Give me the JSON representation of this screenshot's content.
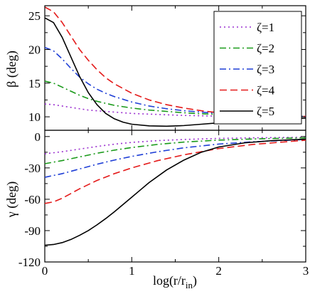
{
  "chart_data": [
    {
      "type": "line",
      "id": "top",
      "xlabel": "",
      "ylabel": "β (deg)",
      "xlim": [
        0,
        3
      ],
      "ylim": [
        8,
        26.5
      ],
      "xticks": [
        0,
        1,
        2,
        3
      ],
      "yticks": [
        10,
        15,
        20,
        25
      ],
      "ytick_labels": [
        "10",
        "15",
        "20",
        "25"
      ],
      "legend_position": "top-right",
      "series": [
        {
          "name": "ζ=1",
          "color": "#9b30d0",
          "dash": "dot",
          "x": [
            0,
            0.1,
            0.2,
            0.3,
            0.4,
            0.5,
            0.6,
            0.7,
            0.8,
            1.0,
            1.2,
            1.4,
            1.6,
            1.8,
            2.0,
            2.3,
            2.6,
            3.0
          ],
          "y": [
            11.9,
            11.8,
            11.6,
            11.4,
            11.2,
            11.0,
            10.9,
            10.8,
            10.7,
            10.5,
            10.4,
            10.3,
            10.2,
            10.15,
            10.1,
            10.05,
            10.0,
            10.0
          ]
        },
        {
          "name": "ζ=2",
          "color": "#1a9a1a",
          "dash": "dashdot",
          "x": [
            0,
            0.1,
            0.2,
            0.3,
            0.4,
            0.5,
            0.6,
            0.7,
            0.8,
            1.0,
            1.2,
            1.4,
            1.6,
            1.8,
            2.0,
            2.3,
            2.6,
            3.0
          ],
          "y": [
            15.3,
            15.0,
            14.4,
            13.8,
            13.2,
            12.7,
            12.3,
            12.0,
            11.7,
            11.3,
            11.0,
            10.8,
            10.6,
            10.45,
            10.35,
            10.2,
            10.1,
            10.05
          ]
        },
        {
          "name": "ζ=3",
          "color": "#1f3fd6",
          "dash": "dashdot",
          "x": [
            0,
            0.1,
            0.2,
            0.3,
            0.4,
            0.5,
            0.6,
            0.7,
            0.8,
            1.0,
            1.2,
            1.4,
            1.6,
            1.8,
            2.0,
            2.3,
            2.6,
            3.0
          ],
          "y": [
            20.3,
            19.8,
            18.6,
            17.2,
            15.9,
            14.9,
            14.1,
            13.5,
            13.0,
            12.2,
            11.6,
            11.2,
            10.9,
            10.7,
            10.5,
            10.3,
            10.15,
            10.05
          ]
        },
        {
          "name": "ζ=4",
          "color": "#e41a1a",
          "dash": "dash",
          "x": [
            0,
            0.1,
            0.2,
            0.3,
            0.4,
            0.5,
            0.6,
            0.7,
            0.8,
            1.0,
            1.2,
            1.4,
            1.6,
            1.8,
            2.0,
            2.3,
            2.6,
            3.0
          ],
          "y": [
            26.3,
            25.6,
            24.0,
            22.0,
            20.0,
            18.4,
            17.0,
            15.8,
            14.9,
            13.5,
            12.5,
            11.8,
            11.3,
            10.9,
            10.6,
            10.3,
            10.15,
            10.05
          ]
        },
        {
          "name": "ζ=5",
          "color": "#000000",
          "dash": "solid",
          "x": [
            0,
            0.1,
            0.2,
            0.3,
            0.4,
            0.5,
            0.6,
            0.7,
            0.8,
            0.9,
            1.0,
            1.2,
            1.4,
            1.6,
            1.8,
            2.0,
            2.3,
            2.6,
            3.0
          ],
          "y": [
            24.7,
            24.0,
            21.8,
            18.9,
            16.0,
            13.6,
            11.8,
            10.5,
            9.7,
            9.2,
            8.9,
            8.65,
            8.6,
            8.7,
            8.9,
            9.1,
            9.4,
            9.6,
            9.8
          ]
        }
      ]
    },
    {
      "type": "line",
      "id": "bottom",
      "xlabel": "log(r/r_in)",
      "ylabel": "γ (deg)",
      "xlim": [
        0,
        3
      ],
      "ylim": [
        -120,
        6
      ],
      "xticks": [
        0,
        1,
        2,
        3
      ],
      "xtick_labels": [
        "0",
        "1",
        "2",
        "3"
      ],
      "yticks": [
        -120,
        -90,
        -60,
        -30,
        0
      ],
      "ytick_labels": [
        "-120",
        "-90",
        "-60",
        "-30",
        "0"
      ],
      "series": [
        {
          "name": "ζ=1",
          "color": "#9b30d0",
          "dash": "dot",
          "x": [
            0,
            0.2,
            0.4,
            0.6,
            0.8,
            1.0,
            1.3,
            1.6,
            2.0,
            2.4,
            3.0
          ],
          "y": [
            -16.5,
            -14.5,
            -12.0,
            -9.5,
            -7.3,
            -5.6,
            -3.9,
            -2.8,
            -1.8,
            -1.2,
            -0.7
          ]
        },
        {
          "name": "ζ=2",
          "color": "#1a9a1a",
          "dash": "dashdot",
          "x": [
            0,
            0.2,
            0.4,
            0.6,
            0.8,
            1.0,
            1.3,
            1.6,
            2.0,
            2.4,
            3.0
          ],
          "y": [
            -26,
            -23,
            -19.5,
            -16,
            -13,
            -10.5,
            -7.5,
            -5.3,
            -3.4,
            -2.3,
            -1.2
          ]
        },
        {
          "name": "ζ=3",
          "color": "#1f3fd6",
          "dash": "dashdot",
          "x": [
            0,
            0.2,
            0.4,
            0.6,
            0.8,
            1.0,
            1.3,
            1.6,
            2.0,
            2.4,
            3.0
          ],
          "y": [
            -39,
            -35.5,
            -31,
            -26.5,
            -22.5,
            -19,
            -14.5,
            -10.8,
            -7.2,
            -5.0,
            -2.8
          ]
        },
        {
          "name": "ζ=4",
          "color": "#e41a1a",
          "dash": "dash",
          "x": [
            0,
            0.1,
            0.2,
            0.4,
            0.6,
            0.8,
            1.0,
            1.3,
            1.6,
            2.0,
            2.4,
            3.0
          ],
          "y": [
            -64,
            -62.5,
            -59,
            -50,
            -42,
            -35.5,
            -30,
            -23,
            -17.5,
            -11.5,
            -7.5,
            -3.5
          ]
        },
        {
          "name": "ζ=5",
          "color": "#000000",
          "dash": "solid",
          "x": [
            0,
            0.1,
            0.2,
            0.3,
            0.4,
            0.5,
            0.6,
            0.7,
            0.8,
            0.9,
            1.0,
            1.1,
            1.2,
            1.4,
            1.6,
            1.8,
            2.0,
            2.3,
            2.6,
            3.0
          ],
          "y": [
            -104,
            -103.3,
            -101.5,
            -98.5,
            -94.5,
            -90,
            -84.5,
            -78.5,
            -72,
            -65,
            -58,
            -51,
            -44,
            -32,
            -22.5,
            -15,
            -10,
            -6,
            -4,
            -2.5
          ]
        }
      ]
    }
  ],
  "legend": {
    "entries": [
      "ζ=1",
      "ζ=2",
      "ζ=3",
      "ζ=4",
      "ζ=5"
    ]
  }
}
